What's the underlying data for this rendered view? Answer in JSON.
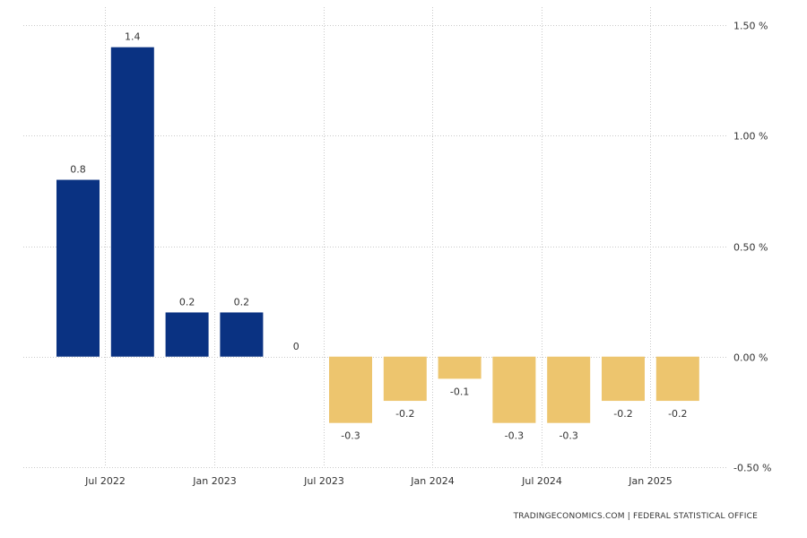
{
  "chart_data": {
    "type": "bar",
    "title": "",
    "xlabel": "",
    "ylabel": "",
    "categories": [
      "2022-Q2",
      "2022-Q3",
      "2022-Q4",
      "2023-Q1",
      "2023-Q2",
      "2023-Q3",
      "2023-Q4",
      "2024-Q1",
      "2024-Q2",
      "2024-Q3",
      "2024-Q4",
      "2025-Q1"
    ],
    "values": [
      0.8,
      1.4,
      0.2,
      0.2,
      0,
      -0.3,
      -0.2,
      -0.1,
      -0.3,
      -0.3,
      -0.2,
      -0.2
    ],
    "data_labels": [
      "0.8",
      "1.4",
      "0.2",
      "0.2",
      "0",
      "-0.3",
      "-0.2",
      "-0.1",
      "-0.3",
      "-0.3",
      "-0.2",
      "-0.2"
    ],
    "ylim": [
      -0.5,
      1.5
    ],
    "y_ticks": [
      1.5,
      1.0,
      0.5,
      0.0,
      -0.5
    ],
    "y_tick_labels": [
      "1.50 %",
      "1.00 %",
      "0.50 %",
      "0.00 %",
      "-0.50 %"
    ],
    "y_axis_side": "right",
    "x_tick_labels": [
      {
        "label": "Jul 2022",
        "after_index": 0
      },
      {
        "label": "Jan 2023",
        "after_index": 2
      },
      {
        "label": "Jul 2023",
        "after_index": 4
      },
      {
        "label": "Jan 2024",
        "after_index": 6
      },
      {
        "label": "Jul 2024",
        "after_index": 8
      },
      {
        "label": "Jan 2025",
        "after_index": 10
      }
    ],
    "grid": true,
    "colors": {
      "positive": "#0A3282",
      "negative": "#EDC56E",
      "grid": "#c9c9c9",
      "text": "#333333"
    }
  },
  "source": "TRADINGECONOMICS.COM  |  FEDERAL STATISTICAL OFFICE"
}
